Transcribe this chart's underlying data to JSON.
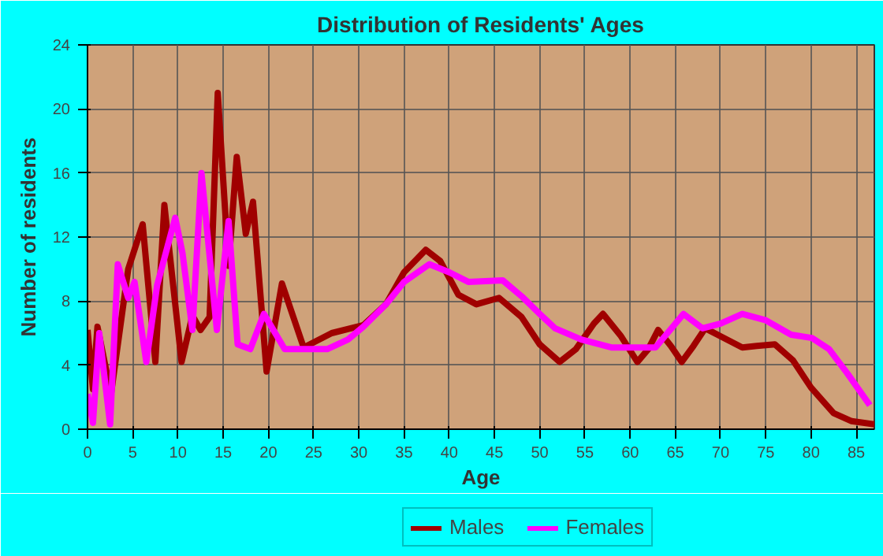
{
  "chart_data": {
    "type": "line",
    "title": "Distribution of Residents' Ages",
    "xlabel": "Age",
    "ylabel": "Number of residents",
    "xlim": [
      0,
      87
    ],
    "xticks": [
      0,
      5,
      10,
      15,
      20,
      25,
      30,
      35,
      40,
      45,
      50,
      55,
      60,
      65,
      70,
      75,
      80,
      85
    ],
    "ylim": [
      0,
      24
    ],
    "yticks": [
      0,
      4,
      8,
      12,
      16,
      20,
      24
    ],
    "grid": true,
    "legend": "bottom",
    "marker": "none",
    "line_style": "solid",
    "series": [
      {
        "name": "Males",
        "color": "#a00000",
        "x": [
          0,
          0.6,
          1.1,
          2.6,
          4.5,
          6.1,
          7.5,
          8.5,
          10.4,
          11.6,
          12.5,
          13.5,
          14.4,
          15.6,
          16.5,
          17.5,
          18.3,
          19.8,
          21.5,
          23.9,
          27,
          30.5,
          33,
          35,
          37.4,
          39,
          41,
          43,
          45.5,
          48,
          50,
          52.2,
          54,
          56,
          57,
          59,
          60.8,
          62,
          63.1,
          64.5,
          65.7,
          67,
          68.3,
          70,
          72.4,
          74,
          76,
          78,
          80,
          82.5,
          84.5,
          87
        ],
        "values": [
          6.2,
          2.5,
          6.4,
          2.2,
          10,
          12.8,
          4.2,
          14,
          4.2,
          7.1,
          6.2,
          7,
          21,
          10.2,
          17,
          12.2,
          14.2,
          3.6,
          9.1,
          5.1,
          6,
          6.5,
          7.8,
          9.8,
          11.2,
          10.5,
          8.4,
          7.8,
          8.2,
          7,
          5.3,
          4.2,
          5,
          6.6,
          7.2,
          5.8,
          4.2,
          5,
          6.2,
          5.2,
          4.2,
          5.2,
          6.3,
          5.8,
          5.1,
          5.2,
          5.3,
          4.3,
          2.6,
          1,
          0.5,
          0.3
        ]
      },
      {
        "name": "Females",
        "color": "#ff00ff",
        "x": [
          0,
          0.6,
          1.3,
          2.5,
          3.35,
          4.5,
          5.2,
          6.5,
          7.7,
          9.7,
          10.5,
          11.6,
          12.6,
          14.3,
          15.6,
          16.6,
          18,
          19.5,
          21.8,
          26.5,
          28.8,
          30.5,
          33,
          35,
          37.8,
          40,
          42.1,
          45.9,
          48,
          50,
          51.7,
          54.6,
          58,
          62.8,
          65.9,
          68,
          70,
          72.4,
          75,
          77.8,
          80.1,
          82,
          84,
          86.5
        ],
        "values": [
          2.2,
          0.4,
          6,
          0.3,
          10.3,
          8.2,
          9.2,
          4.2,
          9,
          13.2,
          11,
          6.2,
          16,
          6.2,
          13,
          5.3,
          5,
          7.2,
          5,
          5,
          5.6,
          6.4,
          7.8,
          9.2,
          10.3,
          9.8,
          9.2,
          9.3,
          8.3,
          7.2,
          6.3,
          5.6,
          5.1,
          5.1,
          7.2,
          6.3,
          6.6,
          7.2,
          6.8,
          5.9,
          5.7,
          5,
          3.5,
          1.5
        ]
      }
    ]
  }
}
